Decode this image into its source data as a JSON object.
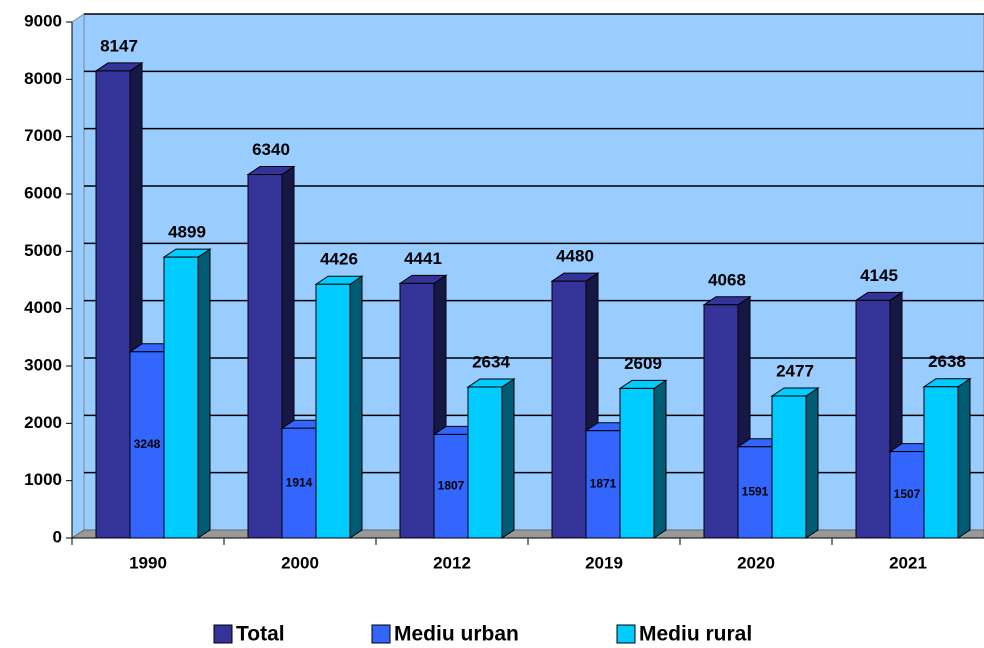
{
  "chart_data": {
    "type": "bar",
    "categories": [
      "1990",
      "2000",
      "2012",
      "2019",
      "2020",
      "2021"
    ],
    "series": [
      {
        "name": "Total",
        "color": "#333399",
        "values": [
          8147,
          6340,
          4441,
          4480,
          4068,
          4145
        ]
      },
      {
        "name": "Mediu urban",
        "color": "#3366ff",
        "values": [
          3248,
          1914,
          1807,
          1871,
          1591,
          1507
        ]
      },
      {
        "name": "Mediu rural",
        "color": "#00ccff",
        "values": [
          4899,
          4426,
          2634,
          2609,
          2477,
          2638
        ]
      }
    ],
    "ylim": [
      0,
      9000
    ],
    "yticks": [
      0,
      1000,
      2000,
      3000,
      4000,
      5000,
      6000,
      7000,
      8000,
      9000
    ],
    "grid": true,
    "legend": "bottom"
  }
}
